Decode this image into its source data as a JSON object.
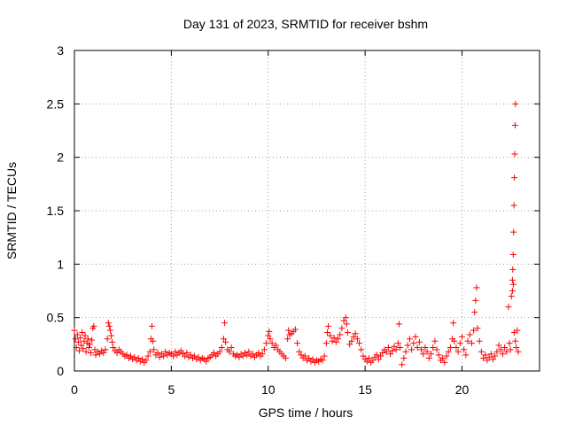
{
  "chart_data": {
    "type": "scatter",
    "title": "Day 131 of 2023, SRMTID for receiver bshm",
    "xlabel": "GPS time / hours",
    "ylabel": "SRMTID / TECUs",
    "xlim": [
      0,
      24
    ],
    "ylim": [
      0,
      3
    ],
    "xticks": [
      0,
      5,
      10,
      15,
      20
    ],
    "yticks": [
      0,
      0.5,
      1,
      1.5,
      2,
      2.5,
      3
    ],
    "xtick_labels": [
      "0",
      "5",
      "10",
      "15",
      "20"
    ],
    "ytick_labels": [
      "0",
      "0.5",
      "1",
      "1.5",
      "2",
      "2.5",
      "3"
    ],
    "grid": true,
    "marker": "+",
    "color": "#ff0000",
    "series": [
      {
        "name": "SRMTID",
        "points": [
          [
            0.0,
            0.38
          ],
          [
            0.05,
            0.3
          ],
          [
            0.1,
            0.22
          ],
          [
            0.15,
            0.34
          ],
          [
            0.2,
            0.27
          ],
          [
            0.25,
            0.19
          ],
          [
            0.3,
            0.31
          ],
          [
            0.35,
            0.24
          ],
          [
            0.4,
            0.36
          ],
          [
            0.45,
            0.21
          ],
          [
            0.5,
            0.28
          ],
          [
            0.55,
            0.33
          ],
          [
            0.6,
            0.18
          ],
          [
            0.65,
            0.26
          ],
          [
            0.7,
            0.3
          ],
          [
            0.75,
            0.22
          ],
          [
            0.8,
            0.25
          ],
          [
            0.85,
            0.17
          ],
          [
            0.9,
            0.29
          ],
          [
            0.95,
            0.4
          ],
          [
            1.0,
            0.42
          ],
          [
            1.05,
            0.2
          ],
          [
            1.1,
            0.15
          ],
          [
            1.2,
            0.18
          ],
          [
            1.3,
            0.16
          ],
          [
            1.4,
            0.19
          ],
          [
            1.5,
            0.17
          ],
          [
            1.6,
            0.2
          ],
          [
            1.7,
            0.3
          ],
          [
            1.75,
            0.45
          ],
          [
            1.8,
            0.42
          ],
          [
            1.85,
            0.38
          ],
          [
            1.9,
            0.33
          ],
          [
            1.95,
            0.27
          ],
          [
            2.0,
            0.22
          ],
          [
            2.1,
            0.19
          ],
          [
            2.2,
            0.17
          ],
          [
            2.3,
            0.2
          ],
          [
            2.4,
            0.18
          ],
          [
            2.5,
            0.16
          ],
          [
            2.6,
            0.14
          ],
          [
            2.7,
            0.15
          ],
          [
            2.8,
            0.12
          ],
          [
            2.9,
            0.14
          ],
          [
            3.0,
            0.11
          ],
          [
            3.1,
            0.13
          ],
          [
            3.2,
            0.1
          ],
          [
            3.3,
            0.12
          ],
          [
            3.4,
            0.09
          ],
          [
            3.5,
            0.11
          ],
          [
            3.6,
            0.08
          ],
          [
            3.7,
            0.1
          ],
          [
            3.8,
            0.14
          ],
          [
            3.9,
            0.18
          ],
          [
            3.95,
            0.3
          ],
          [
            4.0,
            0.42
          ],
          [
            4.05,
            0.28
          ],
          [
            4.1,
            0.2
          ],
          [
            4.2,
            0.15
          ],
          [
            4.3,
            0.17
          ],
          [
            4.4,
            0.13
          ],
          [
            4.5,
            0.16
          ],
          [
            4.6,
            0.14
          ],
          [
            4.7,
            0.18
          ],
          [
            4.8,
            0.15
          ],
          [
            4.9,
            0.17
          ],
          [
            5.0,
            0.16
          ],
          [
            5.1,
            0.14
          ],
          [
            5.2,
            0.18
          ],
          [
            5.3,
            0.15
          ],
          [
            5.4,
            0.17
          ],
          [
            5.5,
            0.19
          ],
          [
            5.6,
            0.16
          ],
          [
            5.7,
            0.14
          ],
          [
            5.8,
            0.17
          ],
          [
            5.9,
            0.13
          ],
          [
            6.0,
            0.15
          ],
          [
            6.1,
            0.12
          ],
          [
            6.2,
            0.14
          ],
          [
            6.3,
            0.11
          ],
          [
            6.4,
            0.13
          ],
          [
            6.5,
            0.1
          ],
          [
            6.6,
            0.12
          ],
          [
            6.7,
            0.11
          ],
          [
            6.8,
            0.09
          ],
          [
            6.9,
            0.12
          ],
          [
            7.0,
            0.13
          ],
          [
            7.1,
            0.15
          ],
          [
            7.2,
            0.17
          ],
          [
            7.3,
            0.14
          ],
          [
            7.4,
            0.16
          ],
          [
            7.5,
            0.18
          ],
          [
            7.6,
            0.22
          ],
          [
            7.7,
            0.3
          ],
          [
            7.75,
            0.45
          ],
          [
            7.8,
            0.27
          ],
          [
            7.9,
            0.2
          ],
          [
            8.0,
            0.18
          ],
          [
            8.1,
            0.22
          ],
          [
            8.2,
            0.16
          ],
          [
            8.3,
            0.14
          ],
          [
            8.4,
            0.15
          ],
          [
            8.5,
            0.13
          ],
          [
            8.6,
            0.16
          ],
          [
            8.7,
            0.14
          ],
          [
            8.8,
            0.17
          ],
          [
            8.9,
            0.15
          ],
          [
            9.0,
            0.18
          ],
          [
            9.1,
            0.14
          ],
          [
            9.2,
            0.16
          ],
          [
            9.3,
            0.13
          ],
          [
            9.4,
            0.15
          ],
          [
            9.5,
            0.17
          ],
          [
            9.6,
            0.14
          ],
          [
            9.7,
            0.16
          ],
          [
            9.8,
            0.2
          ],
          [
            9.9,
            0.26
          ],
          [
            10.0,
            0.33
          ],
          [
            10.05,
            0.37
          ],
          [
            10.1,
            0.3
          ],
          [
            10.2,
            0.26
          ],
          [
            10.3,
            0.22
          ],
          [
            10.4,
            0.24
          ],
          [
            10.5,
            0.2
          ],
          [
            10.6,
            0.18
          ],
          [
            10.7,
            0.16
          ],
          [
            10.8,
            0.14
          ],
          [
            10.9,
            0.12
          ],
          [
            11.0,
            0.3
          ],
          [
            11.05,
            0.38
          ],
          [
            11.1,
            0.34
          ],
          [
            11.2,
            0.35
          ],
          [
            11.3,
            0.37
          ],
          [
            11.4,
            0.39
          ],
          [
            11.5,
            0.26
          ],
          [
            11.6,
            0.18
          ],
          [
            11.7,
            0.15
          ],
          [
            11.8,
            0.12
          ],
          [
            11.9,
            0.14
          ],
          [
            12.0,
            0.1
          ],
          [
            12.1,
            0.12
          ],
          [
            12.2,
            0.09
          ],
          [
            12.3,
            0.11
          ],
          [
            12.4,
            0.08
          ],
          [
            12.5,
            0.1
          ],
          [
            12.6,
            0.09
          ],
          [
            12.7,
            0.11
          ],
          [
            12.8,
            0.1
          ],
          [
            12.9,
            0.14
          ],
          [
            13.0,
            0.26
          ],
          [
            13.05,
            0.36
          ],
          [
            13.1,
            0.42
          ],
          [
            13.2,
            0.33
          ],
          [
            13.3,
            0.28
          ],
          [
            13.4,
            0.31
          ],
          [
            13.5,
            0.27
          ],
          [
            13.6,
            0.3
          ],
          [
            13.7,
            0.34
          ],
          [
            13.8,
            0.4
          ],
          [
            13.9,
            0.47
          ],
          [
            14.0,
            0.5
          ],
          [
            14.05,
            0.44
          ],
          [
            14.1,
            0.36
          ],
          [
            14.2,
            0.25
          ],
          [
            14.3,
            0.28
          ],
          [
            14.4,
            0.32
          ],
          [
            14.5,
            0.35
          ],
          [
            14.6,
            0.3
          ],
          [
            14.7,
            0.26
          ],
          [
            14.8,
            0.2
          ],
          [
            14.9,
            0.14
          ],
          [
            15.0,
            0.11
          ],
          [
            15.1,
            0.09
          ],
          [
            15.2,
            0.12
          ],
          [
            15.3,
            0.08
          ],
          [
            15.4,
            0.1
          ],
          [
            15.5,
            0.13
          ],
          [
            15.6,
            0.15
          ],
          [
            15.7,
            0.11
          ],
          [
            15.8,
            0.14
          ],
          [
            15.9,
            0.17
          ],
          [
            16.0,
            0.2
          ],
          [
            16.1,
            0.18
          ],
          [
            16.2,
            0.22
          ],
          [
            16.3,
            0.16
          ],
          [
            16.4,
            0.19
          ],
          [
            16.5,
            0.23
          ],
          [
            16.6,
            0.2
          ],
          [
            16.7,
            0.26
          ],
          [
            16.75,
            0.44
          ],
          [
            16.8,
            0.22
          ],
          [
            16.9,
            0.06
          ],
          [
            17.0,
            0.12
          ],
          [
            17.1,
            0.18
          ],
          [
            17.2,
            0.24
          ],
          [
            17.3,
            0.3
          ],
          [
            17.4,
            0.2
          ],
          [
            17.5,
            0.26
          ],
          [
            17.6,
            0.32
          ],
          [
            17.7,
            0.22
          ],
          [
            17.8,
            0.27
          ],
          [
            17.9,
            0.2
          ],
          [
            18.0,
            0.16
          ],
          [
            18.1,
            0.22
          ],
          [
            18.2,
            0.18
          ],
          [
            18.3,
            0.12
          ],
          [
            18.4,
            0.16
          ],
          [
            18.5,
            0.22
          ],
          [
            18.6,
            0.28
          ],
          [
            18.7,
            0.2
          ],
          [
            18.8,
            0.15
          ],
          [
            18.9,
            0.1
          ],
          [
            19.0,
            0.12
          ],
          [
            19.1,
            0.08
          ],
          [
            19.2,
            0.14
          ],
          [
            19.3,
            0.18
          ],
          [
            19.4,
            0.22
          ],
          [
            19.5,
            0.3
          ],
          [
            19.55,
            0.45
          ],
          [
            19.6,
            0.28
          ],
          [
            19.7,
            0.22
          ],
          [
            19.8,
            0.18
          ],
          [
            19.9,
            0.26
          ],
          [
            20.0,
            0.32
          ],
          [
            20.1,
            0.2
          ],
          [
            20.2,
            0.15
          ],
          [
            20.3,
            0.28
          ],
          [
            20.4,
            0.34
          ],
          [
            20.5,
            0.26
          ],
          [
            20.6,
            0.38
          ],
          [
            20.65,
            0.55
          ],
          [
            20.7,
            0.66
          ],
          [
            20.75,
            0.78
          ],
          [
            20.8,
            0.4
          ],
          [
            20.9,
            0.28
          ],
          [
            21.0,
            0.18
          ],
          [
            21.1,
            0.12
          ],
          [
            21.2,
            0.15
          ],
          [
            21.3,
            0.1
          ],
          [
            21.4,
            0.13
          ],
          [
            21.5,
            0.16
          ],
          [
            21.6,
            0.11
          ],
          [
            21.7,
            0.14
          ],
          [
            21.8,
            0.18
          ],
          [
            21.9,
            0.24
          ],
          [
            22.0,
            0.2
          ],
          [
            22.1,
            0.16
          ],
          [
            22.2,
            0.22
          ],
          [
            22.3,
            0.18
          ],
          [
            22.4,
            0.6
          ],
          [
            22.45,
            0.26
          ],
          [
            22.5,
            0.2
          ],
          [
            22.55,
            0.7
          ],
          [
            22.6,
            0.85
          ],
          [
            22.62,
            0.95
          ],
          [
            22.64,
            1.09
          ],
          [
            22.66,
            1.3
          ],
          [
            22.68,
            1.55
          ],
          [
            22.7,
            1.81
          ],
          [
            22.72,
            2.03
          ],
          [
            22.74,
            2.3
          ],
          [
            22.76,
            2.5
          ],
          [
            22.6,
            0.75
          ],
          [
            22.65,
            0.81
          ],
          [
            22.7,
            0.36
          ],
          [
            22.75,
            0.28
          ],
          [
            22.8,
            0.22
          ],
          [
            22.85,
            0.38
          ],
          [
            22.9,
            0.18
          ]
        ]
      }
    ]
  }
}
